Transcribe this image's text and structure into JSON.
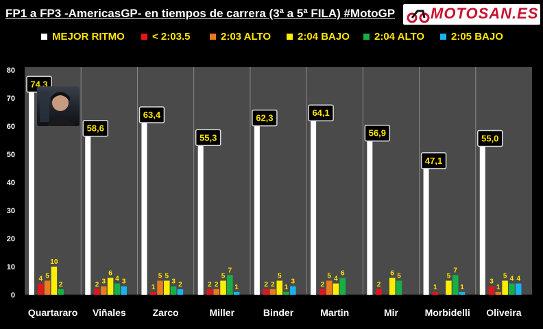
{
  "title": "FP1 a FP3 -AmericasGP- en tiempos de carrera (3ª a 5ª FILA) #MotoGP",
  "logo": {
    "text": "MOTOSAN.ES"
  },
  "colors": {
    "background": "#000000",
    "plot_bg": "#4a4a4a",
    "label_text": "#ffe600",
    "series": [
      "#ffffff",
      "#e8141c",
      "#e97a1e",
      "#ffee00",
      "#16b046",
      "#18b4f0"
    ]
  },
  "legend": [
    {
      "label": "MEJOR RITMO",
      "color": "#ffffff"
    },
    {
      "label": "< 2:03.5",
      "color": "#e8141c"
    },
    {
      "label": "2:03 ALTO",
      "color": "#e97a1e"
    },
    {
      "label": "2:04 BAJO",
      "color": "#ffee00"
    },
    {
      "label": "2:04 ALTO",
      "color": "#16b046"
    },
    {
      "label": "2:05 BAJO",
      "color": "#18b4f0"
    }
  ],
  "chart_data": {
    "type": "bar",
    "categories": [
      "Quartararo",
      "Viñales",
      "Zarco",
      "Miller",
      "Binder",
      "Martin",
      "Mir",
      "Morbidelli",
      "Oliveira"
    ],
    "series": [
      {
        "name": "MEJOR RITMO",
        "values": [
          74.3,
          58.6,
          63.4,
          55.3,
          62.3,
          64.1,
          56.9,
          47.1,
          55.0
        ],
        "labels": [
          "74,3",
          "58,6",
          "63,4",
          "55,3",
          "62,3",
          "64,1",
          "56,9",
          "47,1",
          "55,0"
        ]
      },
      {
        "name": "< 2:03.5",
        "values": [
          4,
          2,
          1,
          2,
          2,
          2,
          2,
          1,
          3
        ]
      },
      {
        "name": "2:03 ALTO",
        "values": [
          5,
          3,
          5,
          2,
          2,
          5,
          0,
          0,
          1
        ]
      },
      {
        "name": "2:04 BAJO",
        "values": [
          10,
          6,
          5,
          5,
          5,
          4,
          6,
          5,
          5
        ]
      },
      {
        "name": "2:04 ALTO",
        "values": [
          2,
          4,
          3,
          7,
          1,
          6,
          5,
          7,
          4
        ]
      },
      {
        "name": "2:05 BAJO",
        "values": [
          0,
          3,
          2,
          1,
          3,
          0,
          0,
          1,
          4
        ]
      }
    ],
    "ylim": [
      0,
      80
    ],
    "yticks": [
      0,
      10,
      20,
      30,
      40,
      50,
      60,
      70,
      80
    ],
    "grid": false,
    "legend_position": "top",
    "xlabel": "",
    "ylabel": ""
  }
}
